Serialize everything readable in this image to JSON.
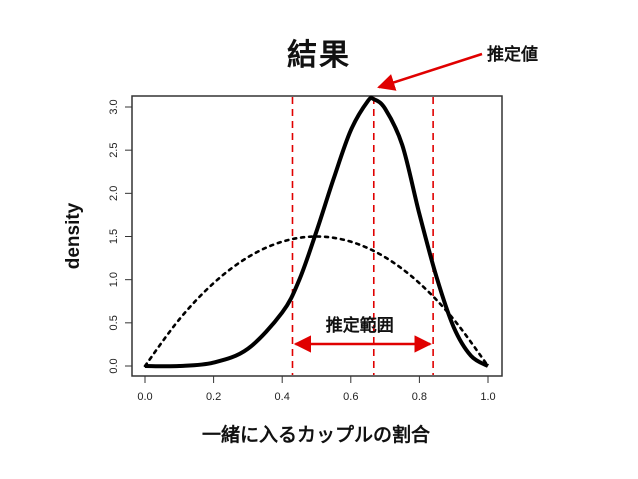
{
  "page": {
    "title": "結果"
  },
  "colors": {
    "accent": "#e00000",
    "line": "#000000",
    "frame": "#333333"
  },
  "chart_data": {
    "type": "line",
    "title": "結果",
    "xlabel": "一緒に入るカップルの割合",
    "ylabel": "density",
    "xlim": [
      0.0,
      1.0
    ],
    "ylim": [
      0.0,
      3.15
    ],
    "x_ticks": [
      "0.0",
      "0.2",
      "0.4",
      "0.6",
      "0.8",
      "1.0"
    ],
    "y_ticks": [
      "0.0",
      "0.5",
      "1.0",
      "1.5",
      "2.0",
      "2.5",
      "3.0"
    ],
    "series": [
      {
        "style": "solid-thick",
        "x": [
          0.0,
          0.1,
          0.2,
          0.3,
          0.4,
          0.45,
          0.5,
          0.55,
          0.6,
          0.65,
          0.667,
          0.7,
          0.75,
          0.8,
          0.85,
          0.9,
          0.95,
          1.0
        ],
        "y": [
          0.0,
          0.0,
          0.04,
          0.2,
          0.62,
          1.0,
          1.56,
          2.17,
          2.73,
          3.07,
          3.09,
          2.98,
          2.56,
          1.76,
          1.03,
          0.45,
          0.12,
          0.0
        ]
      },
      {
        "style": "dotted",
        "x": [
          0.0,
          0.1,
          0.2,
          0.3,
          0.4,
          0.5,
          0.6,
          0.7,
          0.8,
          0.9,
          1.0
        ],
        "y": [
          0.0,
          0.54,
          0.96,
          1.26,
          1.44,
          1.5,
          1.44,
          1.26,
          0.96,
          0.54,
          0.0
        ]
      }
    ],
    "reference_lines_x": [
      0.43,
      0.667,
      0.84
    ],
    "annotations": {
      "estimate_label": "推定値",
      "range_label": "推定範囲",
      "estimate_x": 0.667,
      "range": [
        0.43,
        0.84
      ]
    }
  }
}
